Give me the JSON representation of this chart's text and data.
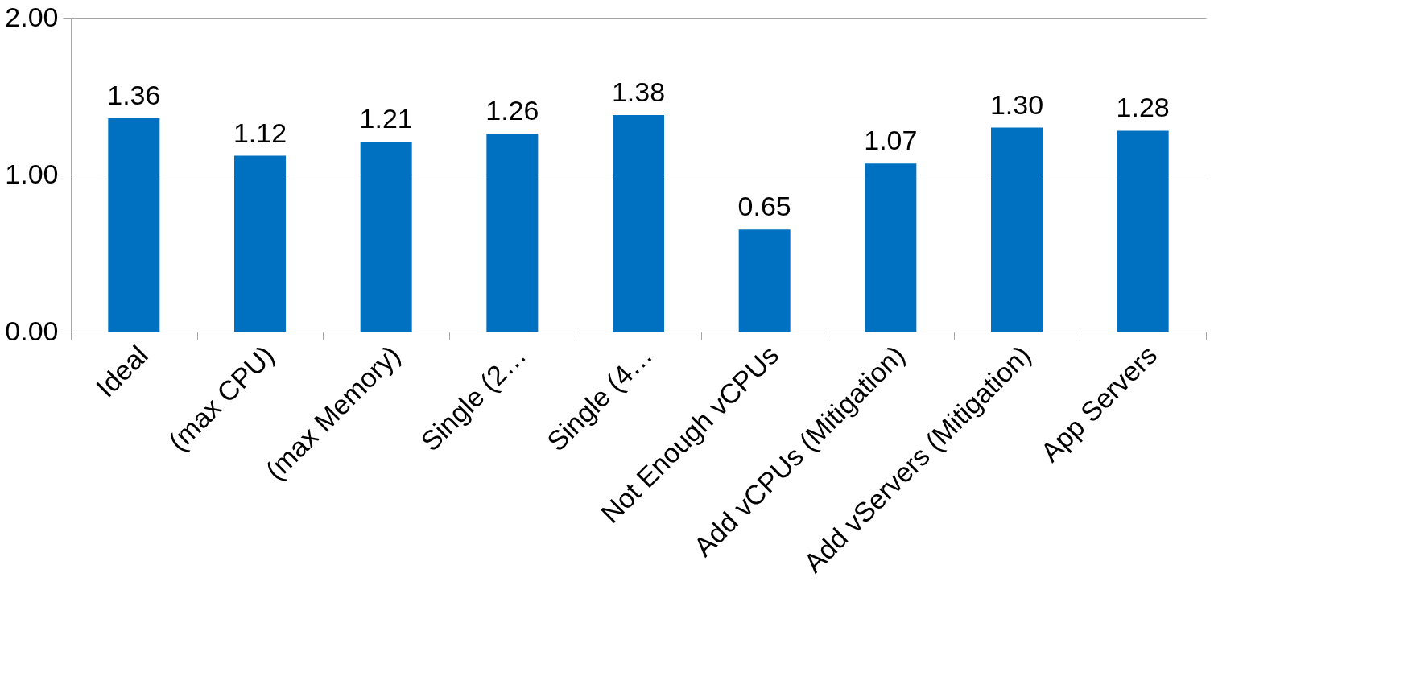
{
  "chart_data": {
    "type": "bar",
    "categories": [
      "Ideal",
      "(max CPU)",
      "(max Memory)",
      "Single (2…",
      "Single (4…",
      "Not Enough vCPUs",
      "Add vCPUs (Mitigation)",
      "Add vServers (Mitigation)",
      "App Servers"
    ],
    "values": [
      1.36,
      1.12,
      1.21,
      1.26,
      1.38,
      0.65,
      1.07,
      1.3,
      1.28
    ],
    "color": "#0070c0",
    "value_labels": [
      "1.36",
      "1.12",
      "1.21",
      "1.26",
      "1.38",
      "0.65",
      "1.07",
      "1.30",
      "1.28"
    ],
    "ylim": [
      0,
      2
    ],
    "yticks": [
      {
        "value": 0,
        "label": "0.00"
      },
      {
        "value": 1,
        "label": "1.00"
      },
      {
        "value": 2,
        "label": "2.00"
      }
    ],
    "grid": "y"
  }
}
